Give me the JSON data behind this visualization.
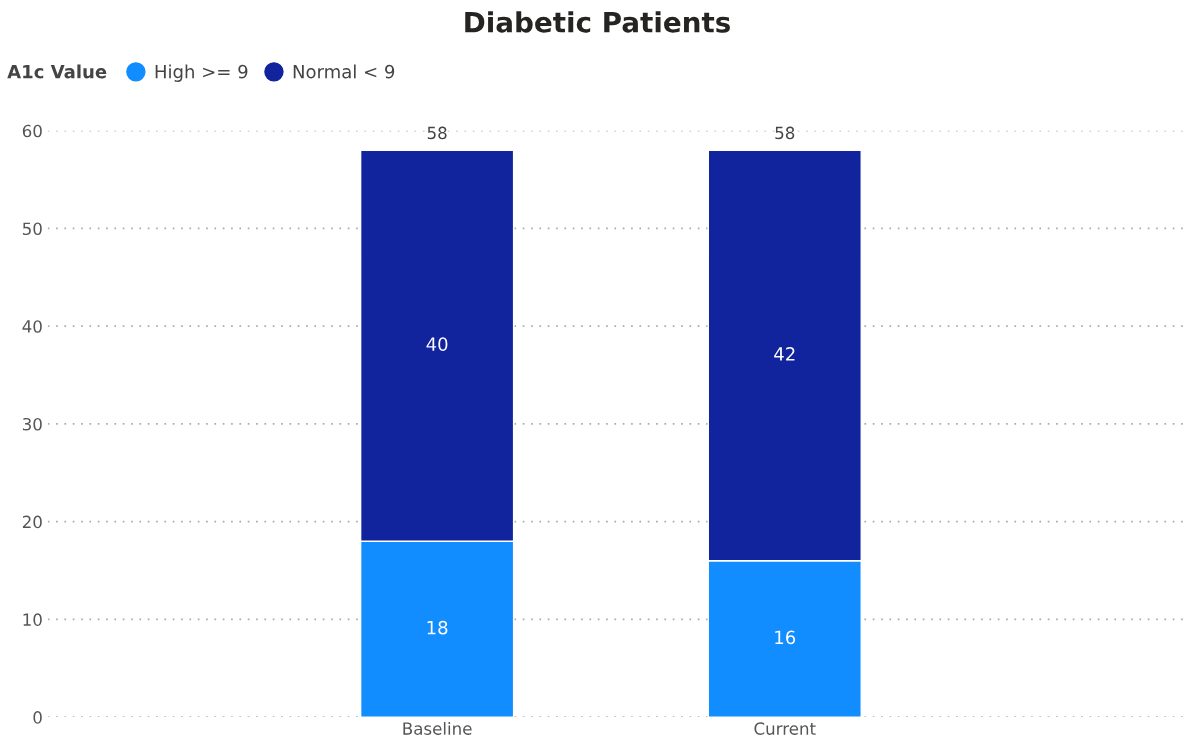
{
  "chart_data": {
    "type": "bar",
    "title": "Diabetic Patients",
    "legend_title": "A1c Value",
    "categories": [
      "Baseline",
      "Current"
    ],
    "series": [
      {
        "name": "High >= 9",
        "color": "#118dff",
        "values": [
          18,
          16
        ]
      },
      {
        "name": "Normal < 9",
        "color": "#12239e",
        "values": [
          40,
          42
        ]
      }
    ],
    "stacked": true,
    "data_labels": true,
    "totals": [
      "58",
      "58"
    ],
    "ylim": [
      0,
      60
    ],
    "yticks": [
      0,
      10,
      20,
      30,
      40,
      50,
      60
    ],
    "grid": "y",
    "legend": "top left"
  }
}
